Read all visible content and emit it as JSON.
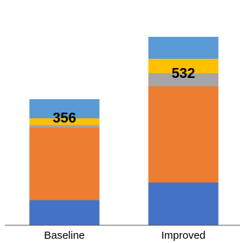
{
  "chart_data": {
    "type": "bar",
    "stacked": true,
    "categories": [
      "Baseline",
      "Improved"
    ],
    "series": [
      {
        "color": "#4472C4",
        "values": [
          71,
          121
        ]
      },
      {
        "color": "#ED7D31",
        "values": [
          205,
          272
        ]
      },
      {
        "color": "#A5A5A5",
        "values": [
          7,
          36
        ]
      },
      {
        "color": "#FFC000",
        "values": [
          19,
          41
        ]
      },
      {
        "color": "#5B9BD5",
        "values": [
          54,
          62
        ]
      }
    ],
    "totals": [
      "356",
      "532"
    ],
    "ylim": [
      0,
      600
    ],
    "grid": false,
    "legend": "none"
  }
}
